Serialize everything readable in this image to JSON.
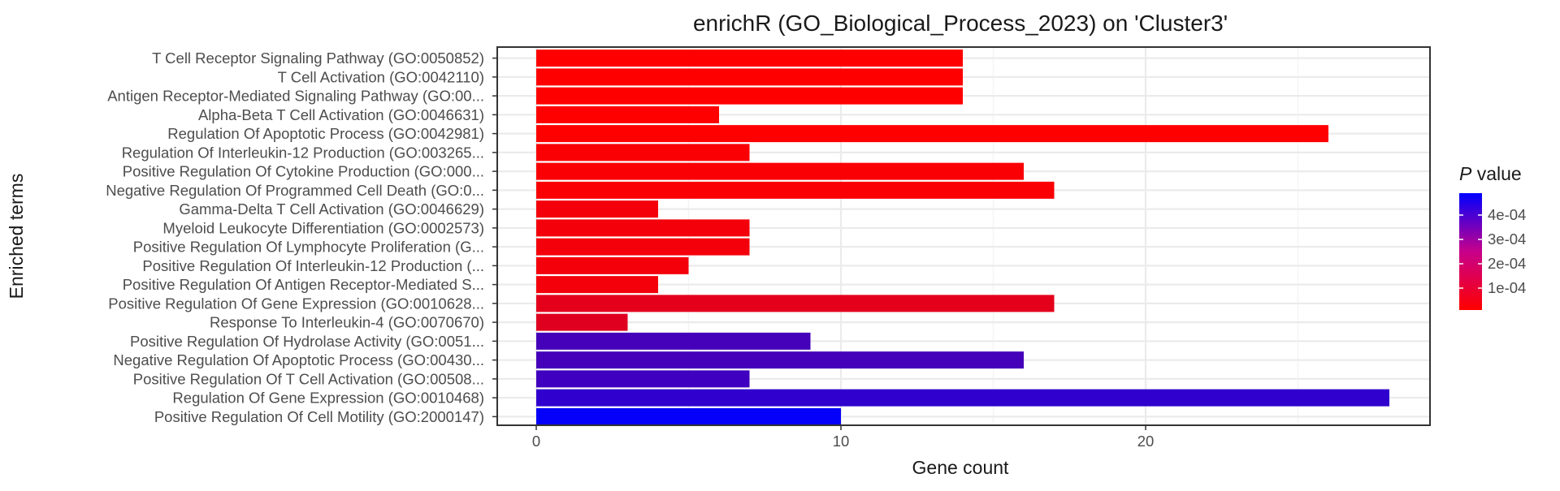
{
  "chart_data": {
    "type": "bar",
    "orientation": "horizontal",
    "title": "enrichR (GO_Biological_Process_2023) on 'Cluster3'",
    "xlabel": "Gene count",
    "ylabel": "Enriched terms",
    "xlim": [
      0,
      29.5
    ],
    "x_ticks": [
      0,
      10,
      20
    ],
    "grid": true,
    "categories": [
      "T Cell Receptor Signaling Pathway (GO:0050852)",
      "T Cell Activation (GO:0042110)",
      "Antigen Receptor-Mediated Signaling Pathway (GO:00...",
      "Alpha-Beta T Cell Activation (GO:0046631)",
      "Regulation Of Apoptotic Process (GO:0042981)",
      "Regulation Of Interleukin-12 Production (GO:003265...",
      "Positive Regulation Of Cytokine Production (GO:000...",
      "Negative Regulation Of Programmed Cell Death (GO:0...",
      "Gamma-Delta T Cell Activation (GO:0046629)",
      "Myeloid Leukocyte Differentiation (GO:0002573)",
      "Positive Regulation Of Lymphocyte Proliferation (G...",
      "Positive Regulation Of Interleukin-12 Production (...",
      "Positive Regulation Of Antigen Receptor-Mediated S...",
      "Positive Regulation Of Gene Expression (GO:0010628...",
      "Response To Interleukin-4 (GO:0070670)",
      "Positive Regulation Of Hydrolase Activity (GO:0051...",
      "Negative Regulation Of Apoptotic Process (GO:00430...",
      "Positive Regulation Of T Cell Activation (GO:00508...",
      "Regulation Of Gene Expression (GO:0010468)",
      "Positive Regulation Of Cell Motility (GO:2000147)"
    ],
    "values": [
      14,
      14,
      14,
      6,
      26,
      7,
      16,
      17,
      4,
      7,
      7,
      5,
      4,
      17,
      3,
      9,
      16,
      7,
      28,
      10
    ],
    "p_values": [
      1e-05,
      1e-05,
      1e-05,
      1e-05,
      1e-05,
      2e-05,
      2e-05,
      2e-05,
      3e-05,
      3e-05,
      3e-05,
      3e-05,
      3e-05,
      6e-05,
      7e-05,
      0.00036,
      0.00036,
      0.00037,
      0.0004,
      0.00048
    ],
    "legend": {
      "title_italic": "P",
      "title_rest": " value",
      "placement": "right",
      "ticks": [
        {
          "value": 0.0001,
          "label": "1e-04"
        },
        {
          "value": 0.0002,
          "label": "2e-04"
        },
        {
          "value": 0.0003,
          "label": "3e-04"
        },
        {
          "value": 0.0004,
          "label": "4e-04"
        }
      ],
      "range": [
        1e-05,
        0.00049
      ]
    },
    "colors": {
      "low": "#ff0000",
      "high": "#0000ff",
      "panel_background": "#ffffff",
      "grid_major": "#ebebeb",
      "grid_minor": "#f5f5f5",
      "axis_text": "#4d4d4d",
      "panel_border": "#333333",
      "text": "#1a1a1a"
    }
  }
}
